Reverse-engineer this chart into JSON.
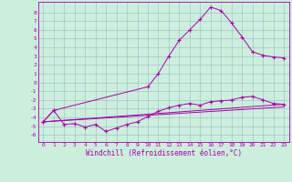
{
  "bg_color": "#cceedd",
  "line_color": "#aa00aa",
  "xlabel": "Windchill (Refroidissement éolien,°C)",
  "xlim": [
    -0.5,
    23.5
  ],
  "ylim": [
    -6.8,
    9.2
  ],
  "xtick_labels": [
    "0",
    "1",
    "2",
    "3",
    "4",
    "5",
    "6",
    "7",
    "8",
    "9",
    "10",
    "11",
    "12",
    "13",
    "14",
    "15",
    "16",
    "17",
    "18",
    "19",
    "20",
    "21",
    "22",
    "23"
  ],
  "ytick_vals": [
    8,
    7,
    6,
    5,
    4,
    3,
    2,
    1,
    0,
    -1,
    -2,
    -3,
    -4,
    -5,
    -6
  ],
  "ytick_labels": [
    "8",
    "7",
    "6",
    "5",
    "4",
    "3",
    "2",
    "1",
    "0",
    "-1",
    "-2",
    "-3",
    "-4",
    "-5",
    "-6"
  ],
  "line1_x": [
    0,
    1,
    2,
    3,
    4,
    5,
    6,
    7,
    8,
    9,
    10,
    11,
    12,
    13,
    14,
    15,
    16,
    17,
    18,
    19,
    20,
    21,
    22,
    23
  ],
  "line1_y": [
    -4.5,
    -3.2,
    -4.8,
    -4.7,
    -5.1,
    -4.8,
    -5.6,
    -5.2,
    -4.8,
    -4.5,
    -3.9,
    -3.3,
    -2.9,
    -2.6,
    -2.4,
    -2.6,
    -2.2,
    -2.1,
    -2.0,
    -1.7,
    -1.6,
    -2.0,
    -2.4,
    -2.5
  ],
  "line2_x": [
    0,
    1,
    10,
    11,
    12,
    13,
    14,
    15,
    16,
    17,
    18,
    19,
    20,
    21,
    22,
    23
  ],
  "line2_y": [
    -4.5,
    -3.2,
    -0.5,
    1.0,
    3.0,
    4.8,
    6.0,
    7.2,
    8.6,
    8.2,
    6.8,
    5.2,
    3.5,
    3.1,
    2.9,
    2.8
  ],
  "line3_x": [
    0,
    23
  ],
  "line3_y": [
    -4.5,
    -2.5
  ],
  "line4_x": [
    0,
    23
  ],
  "line4_y": [
    -4.5,
    -2.8
  ],
  "tick_fontsize": 4.5,
  "xlabel_fontsize": 5.5
}
